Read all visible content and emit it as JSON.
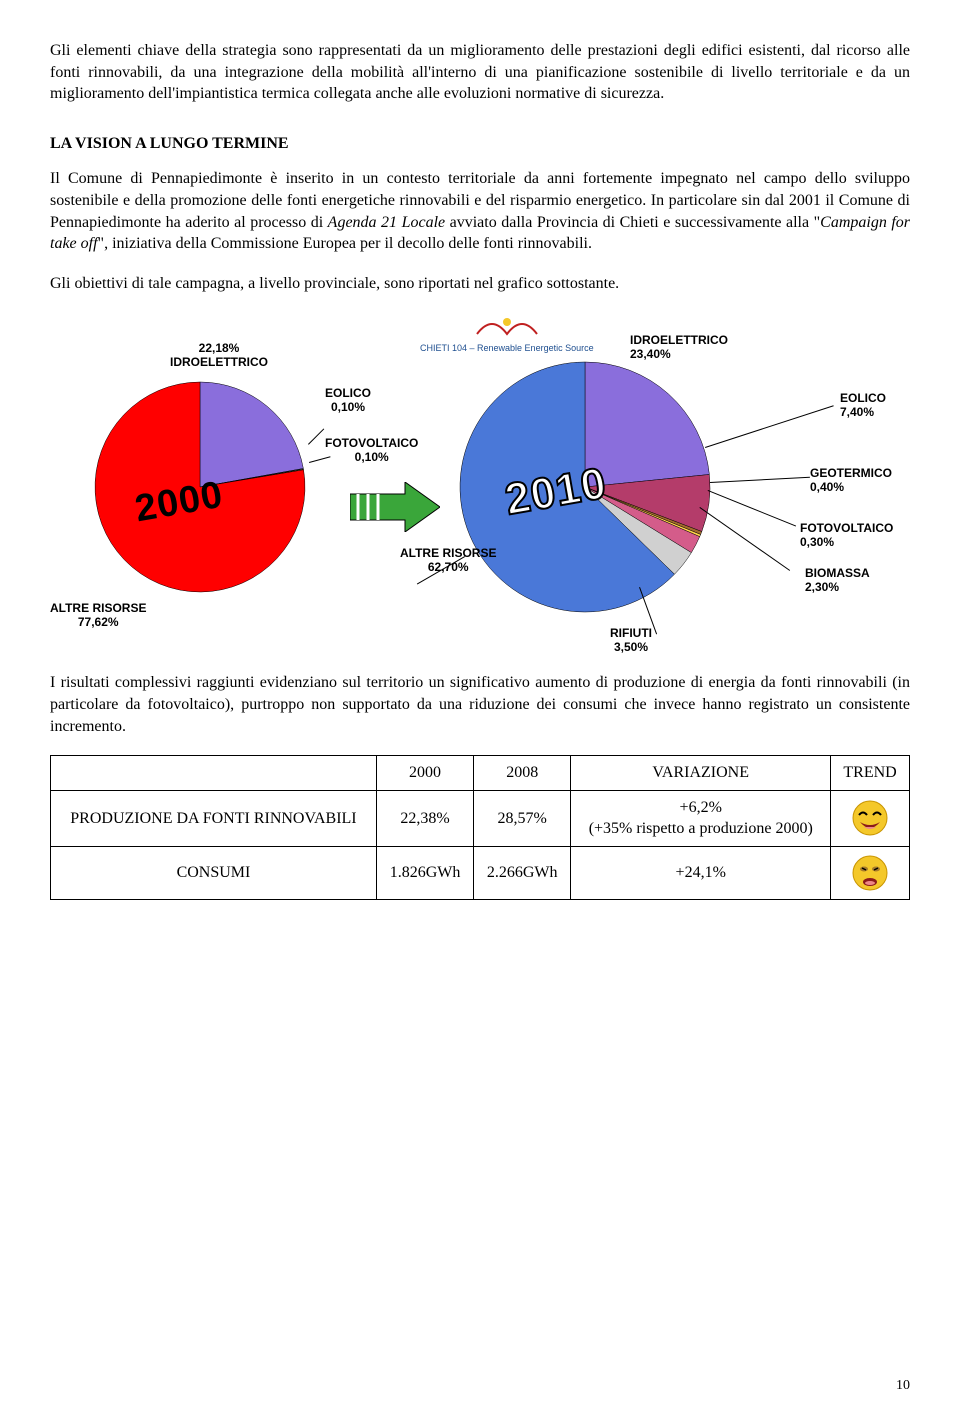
{
  "para1": "Gli elementi chiave della strategia sono rappresentati da un miglioramento delle prestazioni degli edifici esistenti, dal ricorso alle fonti rinnovabili, da una integrazione della mobilità all'interno di una pianificazione sostenibile di livello territoriale e da un miglioramento dell'impiantistica termica collegata anche alle evoluzioni normative di sicurezza.",
  "heading_vision": "LA VISION A LUNGO TERMINE",
  "para2_a": "Il Comune di Pennapiedimonte è inserito in un contesto territoriale da anni fortemente impegnato nel campo dello sviluppo sostenibile e della promozione delle fonti energetiche rinnovabili e del risparmio energetico. In particolare sin dal 2001 il Comune di Pennapiedimonte ha aderito al processo di ",
  "para2_b": "Agenda 21 Locale",
  "para2_c": " avviato dalla Provincia di Chieti e successivamente alla \"",
  "para2_d": "Campaign for take off",
  "para2_e": "\", iniziativa della Commissione Europea per il decollo delle fonti rinnovabili.",
  "para3": "Gli obiettivi di tale campagna, a livello provinciale, sono riportati nel grafico sottostante.",
  "logo_text": "CHIETI 104 – Renewable Energetic Source",
  "pie2000": {
    "year": "2000",
    "slices": [
      {
        "label": "ALTRE RISORSE\n77,62%",
        "value": 77.62,
        "color": "#ff0000"
      },
      {
        "label": "22,18%\nIDROELETTRICO",
        "value": 22.18,
        "color": "#8a6edc"
      },
      {
        "label": "EOLICO\n0,10%",
        "value": 0.1,
        "color": "#4aa3df"
      },
      {
        "label": "FOTOVOLTAICO\n0,10%",
        "value": 0.1,
        "color": "#ffd24a"
      }
    ]
  },
  "pie2010": {
    "year": "2010",
    "slices": [
      {
        "label": "ALTRE RISORSE\n62,70%",
        "value": 62.7,
        "color": "#4a78d8"
      },
      {
        "label": "IDROELETTRICO\n23,40%",
        "value": 23.4,
        "color": "#8a6edc"
      },
      {
        "label": "EOLICO\n7,40%",
        "value": 7.4,
        "color": "#b43c6a"
      },
      {
        "label": "GEOTERMICO\n0,40%",
        "value": 0.4,
        "color": "#a36a2e"
      },
      {
        "label": "FOTOVOLTAICO\n0,30%",
        "value": 0.3,
        "color": "#ffd24a"
      },
      {
        "label": "BIOMASSA\n2,30%",
        "value": 2.3,
        "color": "#d45c8a"
      },
      {
        "label": "RIFIUTI\n3,50%",
        "value": 3.5,
        "color": "#d0d0d0"
      }
    ]
  },
  "para4": "I risultati complessivi raggiunti evidenziano sul territorio un significativo aumento di produzione di energia da fonti rinnovabili (in particolare da fotovoltaico), purtroppo non supportato da una riduzione dei consumi che invece hanno registrato un consistente incremento.",
  "table": {
    "headers": [
      "",
      "2000",
      "2008",
      "VARIAZIONE",
      "TREND"
    ],
    "rows": [
      {
        "label": "PRODUZIONE DA FONTI RINNOVABILI",
        "c2000": "22,38%",
        "c2008": "28,57%",
        "variazione": "+6,2%\n(+35% rispetto a produzione 2000)",
        "trend_color": "#f4c82a",
        "trend_mood": "happy"
      },
      {
        "label": "CONSUMI",
        "c2000": "1.826GWh",
        "c2008": "2.266GWh",
        "variazione": "+24,1%",
        "trend_color": "#f4c82a",
        "trend_mood": "sad"
      }
    ]
  },
  "page_number": "10"
}
